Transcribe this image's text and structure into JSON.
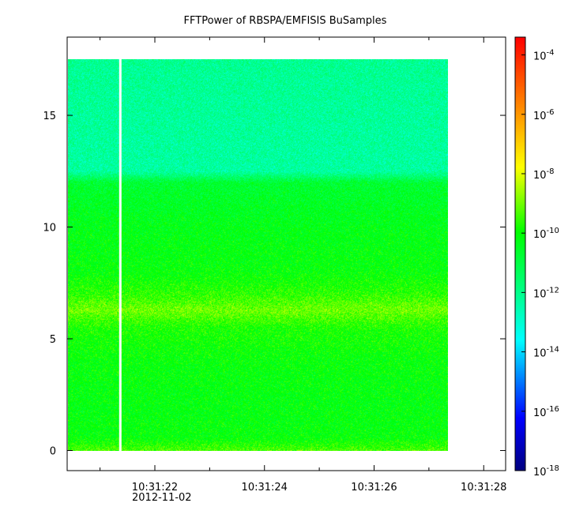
{
  "chart_data": {
    "type": "heatmap",
    "title": "FFTPower of RBSPA/EMFISIS  BuSamples",
    "xlabel": "",
    "ylabel": "",
    "x_ticks": [
      {
        "value": 22,
        "label": "10:31:22",
        "sublabel": "2012-11-02"
      },
      {
        "value": 24,
        "label": "10:31:24",
        "sublabel": ""
      },
      {
        "value": 26,
        "label": "10:31:26",
        "sublabel": ""
      },
      {
        "value": 28,
        "label": "10:31:28",
        "sublabel": ""
      }
    ],
    "x_minor_ticks": [
      21,
      23,
      25,
      27
    ],
    "xlim_seconds": [
      20.4,
      28.4
    ],
    "ylim": [
      -0.9,
      18.5
    ],
    "y_ticks": [
      0,
      5,
      10,
      15
    ],
    "data_extent": {
      "x_start_seconds": 20.4,
      "x_end_seconds": 27.35,
      "y_min": 0.0,
      "y_max": 17.5
    },
    "gap_at_seconds": 21.37,
    "colorbar": {
      "scale": "log",
      "range": [
        -18,
        -3.4
      ],
      "ticks": [
        {
          "base": "10",
          "exp": "-4",
          "value": -4
        },
        {
          "base": "10",
          "exp": "-6",
          "value": -6
        },
        {
          "base": "10",
          "exp": "-8",
          "value": -8
        },
        {
          "base": "10",
          "exp": "-10",
          "value": -10
        },
        {
          "base": "10",
          "exp": "-12",
          "value": -12
        },
        {
          "base": "10",
          "exp": "-14",
          "value": -14
        },
        {
          "base": "10",
          "exp": "-16",
          "value": -16
        },
        {
          "base": "10",
          "exp": "-18",
          "value": -18
        }
      ]
    },
    "spectral_profile": [
      {
        "y": 0.0,
        "log_power": -9.3
      },
      {
        "y": 0.6,
        "log_power": -10.1
      },
      {
        "y": 2.0,
        "log_power": -10.2
      },
      {
        "y": 4.0,
        "log_power": -10.1
      },
      {
        "y": 5.5,
        "log_power": -9.8
      },
      {
        "y": 6.3,
        "log_power": -9.0
      },
      {
        "y": 7.0,
        "log_power": -9.6
      },
      {
        "y": 8.0,
        "log_power": -10.1
      },
      {
        "y": 10.0,
        "log_power": -10.3
      },
      {
        "y": 12.0,
        "log_power": -10.7
      },
      {
        "y": 12.5,
        "log_power": -12.3
      },
      {
        "y": 15.0,
        "log_power": -12.2
      },
      {
        "y": 17.5,
        "log_power": -12.1
      }
    ]
  }
}
